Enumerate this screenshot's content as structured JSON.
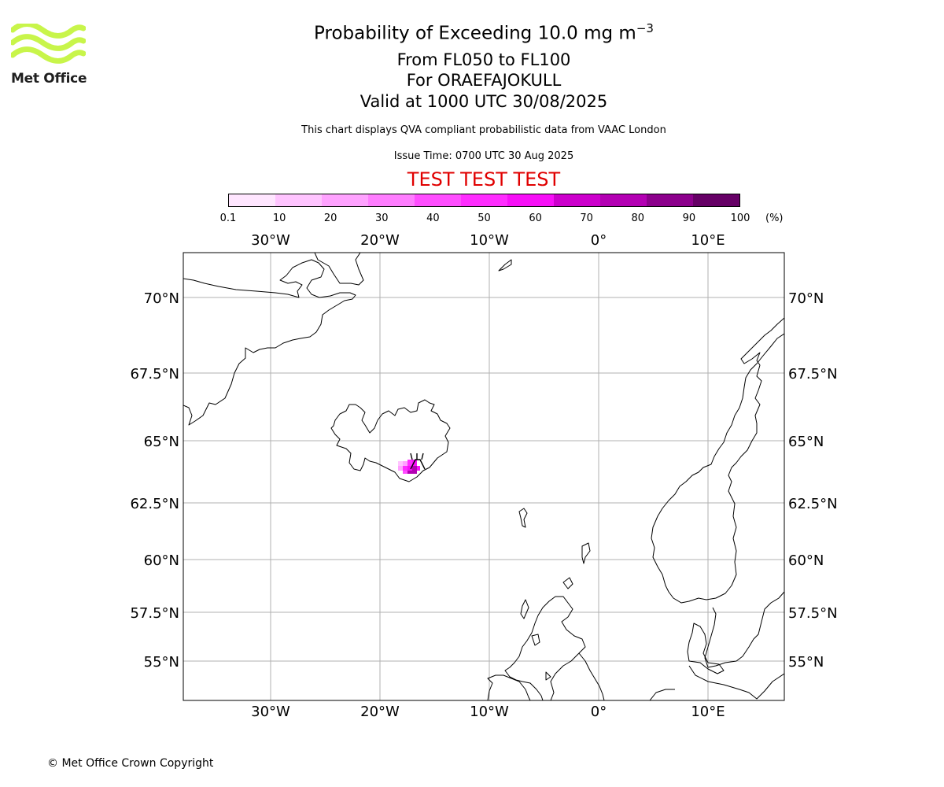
{
  "brand": {
    "logo_text": "Met Office",
    "logo_color": "#c8f54a"
  },
  "header": {
    "title": "Probability of Exceeding 10.0 mg m",
    "title_exponent": "−3",
    "level_range": "From FL050 to FL100",
    "volcano": "For ORAEFAJOKULL",
    "valid_time": "Valid at 1000 UTC 30/08/2025",
    "note": "This chart displays QVA compliant probabilistic data from VAAC London",
    "issue_time": "Issue Time: 0700 UTC 30 Aug 2025",
    "test_banner": "TEST TEST TEST",
    "test_color": "#e00000"
  },
  "colorbar": {
    "colors": [
      "#ffe6ff",
      "#ffc4ff",
      "#ffa2ff",
      "#ff7dff",
      "#ff4dff",
      "#ff2cff",
      "#f70ff7",
      "#cc00cc",
      "#b300b3",
      "#8c008c",
      "#660066"
    ],
    "ticks": [
      "0.1",
      "10",
      "20",
      "30",
      "40",
      "50",
      "60",
      "70",
      "80",
      "90",
      "100"
    ],
    "unit": "(%)"
  },
  "map": {
    "lon_labels": [
      "30°W",
      "20°W",
      "10°W",
      "0°",
      "10°E"
    ],
    "lat_labels": [
      "70°N",
      "67.5°N",
      "65°N",
      "62.5°N",
      "60°N",
      "57.5°N",
      "55°N"
    ],
    "grid_color": "#b0b0b0",
    "ash_color": "#ff2cff",
    "ash_core_color": "#cc00cc",
    "volcano_icon": "volcano-icon"
  },
  "footer": {
    "copyright": "© Met Office Crown Copyright"
  }
}
